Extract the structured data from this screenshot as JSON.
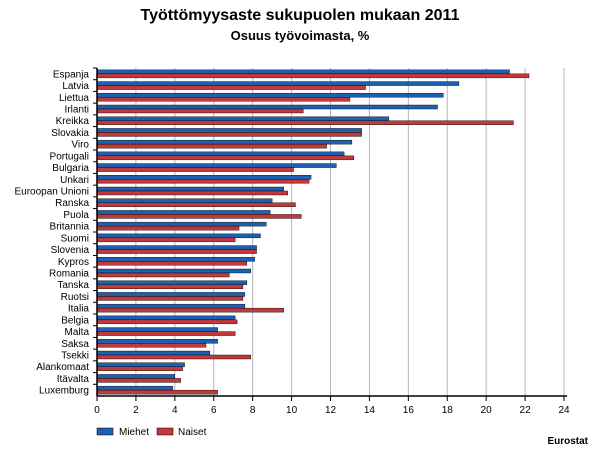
{
  "chart_data": {
    "type": "bar",
    "orientation": "horizontal",
    "title": "Työttömyysaste sukupuolen mukaan 2011",
    "subtitle": "Osuus työvoimasta, %",
    "xlim": [
      0,
      24
    ],
    "x_ticks": [
      "0",
      "2",
      "4",
      "6",
      "8",
      "10",
      "12",
      "14",
      "16",
      "18",
      "20",
      "22",
      "24"
    ],
    "grid": true,
    "legend_position": "bottom-left",
    "source": "Eurostat",
    "categories": [
      "Espanja",
      "Latvia",
      "Liettua",
      "Irlanti",
      "Kreikka",
      "Slovakia",
      "Viro",
      "Portugali",
      "Bulgaria",
      "Unkari",
      "Euroopan Unioni",
      "Ranska",
      "Puola",
      "Britannia",
      "Suomi",
      "Slovenia",
      "Kypros",
      "Romania",
      "Tanska",
      "Ruotsi",
      "Italia",
      "Belgia",
      "Malta",
      "Saksa",
      "Tsekki",
      "Alankomaat",
      "Itävalta",
      "Luxemburg"
    ],
    "series": [
      {
        "name": "Miehet",
        "color": "#1f5fb0",
        "values": [
          21.2,
          18.6,
          17.8,
          17.5,
          15.0,
          13.6,
          13.1,
          12.7,
          12.3,
          11.0,
          9.6,
          9.0,
          8.9,
          8.7,
          8.4,
          8.2,
          8.1,
          7.9,
          7.7,
          7.6,
          7.6,
          7.1,
          6.2,
          6.2,
          5.8,
          4.5,
          4.0,
          3.9
        ]
      },
      {
        "name": "Naiset",
        "color": "#c0393b",
        "values": [
          22.2,
          13.8,
          13.0,
          10.6,
          21.4,
          13.6,
          11.8,
          13.2,
          10.1,
          10.9,
          9.8,
          10.2,
          10.5,
          7.3,
          7.1,
          8.2,
          7.7,
          6.8,
          7.5,
          7.5,
          9.6,
          7.2,
          7.1,
          5.6,
          7.9,
          4.4,
          4.3,
          6.2
        ]
      }
    ]
  }
}
